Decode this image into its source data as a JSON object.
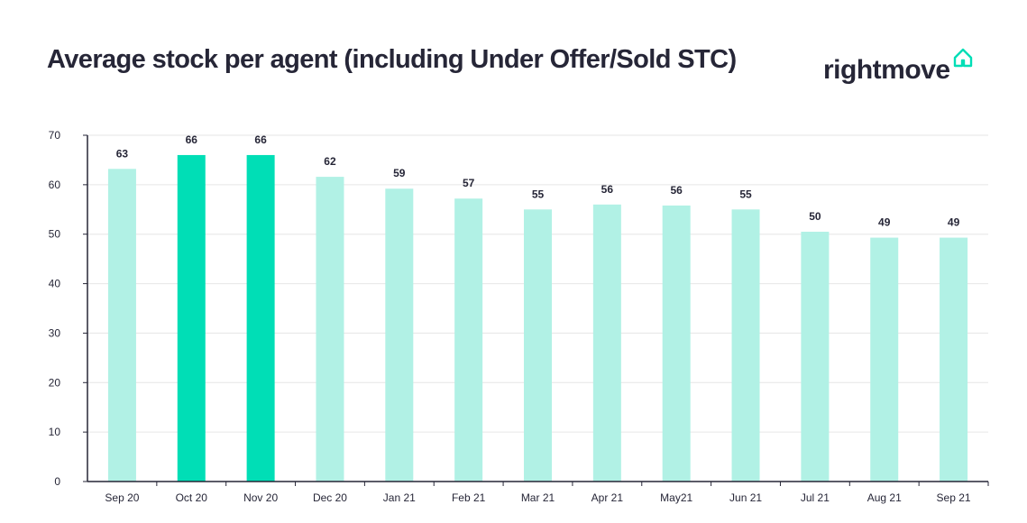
{
  "header": {
    "title": "Average stock per agent (including Under Offer/Sold STC)",
    "logo_text": "rightmove",
    "logo_icon": "house-outline-icon"
  },
  "colors": {
    "bar_light": "#b1f1e5",
    "bar_highlight": "#00deb6",
    "text": "#262637",
    "grid": "#e6e6e6",
    "axis": "#262637"
  },
  "chart_data": {
    "type": "bar",
    "categories": [
      "Sep 20",
      "Oct 20",
      "Nov 20",
      "Dec 20",
      "Jan 21",
      "Feb 21",
      "Mar 21",
      "Apr 21",
      "May21",
      "Jun 21",
      "Jul 21",
      "Aug 21",
      "Sep 21"
    ],
    "values": [
      63,
      66,
      66,
      62,
      59,
      57,
      55,
      56,
      56,
      55,
      50,
      49,
      49
    ],
    "plotted_values": [
      63.2,
      66,
      66,
      61.6,
      59.2,
      57.2,
      55,
      56,
      55.8,
      55,
      50.5,
      49.3,
      49.3
    ],
    "data_labels": [
      "63",
      "66",
      "66",
      "62",
      "59",
      "57",
      "55",
      "56",
      "56",
      "55",
      "50",
      "49",
      "49"
    ],
    "highlighted": [
      false,
      true,
      true,
      false,
      false,
      false,
      false,
      false,
      false,
      false,
      false,
      false,
      false
    ],
    "title": "Average stock per agent (including Under Offer/Sold STC)",
    "xlabel": "",
    "ylabel": "",
    "ylim": [
      0,
      70
    ],
    "yticks": [
      0,
      10,
      20,
      30,
      40,
      50,
      60,
      70
    ],
    "grid": true,
    "legend": "none"
  }
}
